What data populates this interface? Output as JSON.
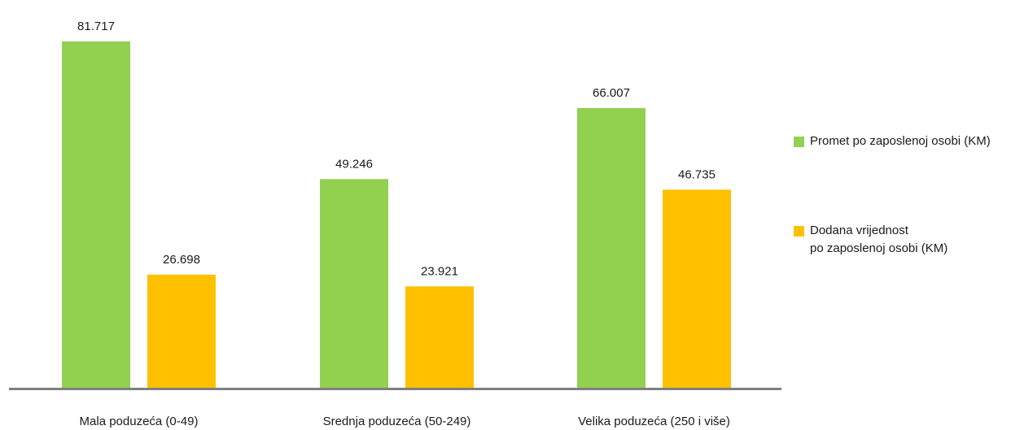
{
  "chart_data": {
    "type": "bar",
    "categories": [
      "Mala poduzeća (0-49)",
      "Srednja poduzeća (50-249)",
      "Velika poduzeća (250 i više)"
    ],
    "series": [
      {
        "name": "Promet po zaposlenoj osobi (KM)",
        "values": [
          81717,
          49246,
          66007
        ],
        "labels": [
          "81.717",
          "49.246",
          "66.007"
        ],
        "color": "#92D050"
      },
      {
        "name": "Dodana vrijednost po zaposlenoj osobi (KM)",
        "values": [
          26698,
          23921,
          46735
        ],
        "labels": [
          "26.698",
          "23.921",
          "46.735"
        ],
        "color": "#FFC000"
      }
    ],
    "ylim": [
      0,
      90000
    ],
    "grid": false,
    "legend_position": "right",
    "axis_color": "#7f7f7f"
  },
  "legend": {
    "item1": {
      "line1": "Promet po zaposlenoj osobi (KM)"
    },
    "item2": {
      "line1": "Dodana vrijednost",
      "line2": "po zaposlenoj osobi (KM)"
    }
  }
}
